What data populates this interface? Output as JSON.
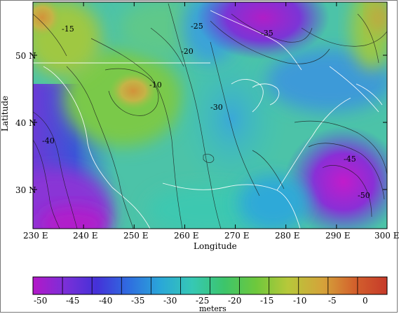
{
  "map": {
    "x_ticks": [
      "230 E",
      "240 E",
      "250 E",
      "260 E",
      "270 E",
      "280 E",
      "290 E",
      "300 E"
    ],
    "y_ticks": [
      "50 N",
      "40 N",
      "30 N"
    ],
    "x_axis_label": "Longitude",
    "y_axis_label": "Latitude",
    "contour_labels": [
      "-15",
      "-20",
      "-25",
      "-10",
      "-30",
      "-35",
      "-40",
      "-45",
      "-50"
    ],
    "colors": {
      "land_relief": "shaded",
      "coastline": "#ffffff",
      "contour": "#1a1a1a"
    }
  },
  "colorbar": {
    "tick_labels": [
      "-50",
      "-45",
      "-40",
      "-35",
      "-30",
      "-25",
      "-20",
      "-15",
      "-10",
      "-5",
      "0"
    ],
    "unit_label": "meters",
    "colors": [
      "#b318c8",
      "#7b2fd8",
      "#4431d8",
      "#2f6de0",
      "#2aa7d8",
      "#36c8b4",
      "#3cc56b",
      "#6ec83c",
      "#b7c83a",
      "#d5a23a",
      "#d3602c",
      "#c63a2a"
    ]
  }
}
